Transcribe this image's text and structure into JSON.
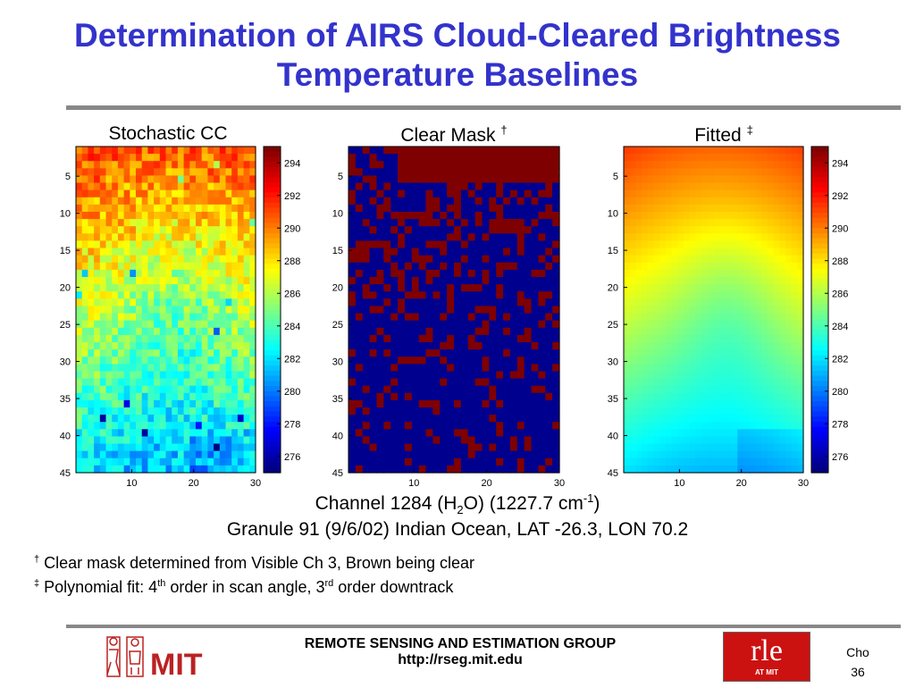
{
  "title_line1": "Determination of AIRS Cloud-Cleared Brightness",
  "title_line2": "Temperature Baselines",
  "panels": {
    "stochastic": "Stochastic CC",
    "clear_mask": "Clear Mask",
    "clear_mask_mark": "†",
    "fitted": "Fitted",
    "fitted_mark": "‡"
  },
  "caption": {
    "line1_a": "Channel 1284 (H",
    "line1_sub": "2",
    "line1_b": "O) (1227.7 cm",
    "line1_sup": "-1",
    "line1_c": ")",
    "line2": "Granule 91 (9/6/02) Indian Ocean, LAT -26.3, LON 70.2"
  },
  "notes": {
    "n1_mark": "†",
    "n1_text": " Clear mask determined from Visible Ch 3, Brown being clear",
    "n2_mark": "‡",
    "n2_a": " Polynomial fit: 4",
    "n2_sup1": "th",
    "n2_b": " order in scan angle, 3",
    "n2_sup2": "rd",
    "n2_c": " order downtrack"
  },
  "footer": {
    "group": "REMOTE SENSING AND ESTIMATION GROUP",
    "url": "http://rseg.mit.edu",
    "author": "Cho",
    "page": "36",
    "mit_logo": "MIT",
    "rle_logo": "rle",
    "rle_sub": "AT MIT"
  },
  "colors": {
    "title": "#3333cc",
    "clear": "#7f0000",
    "cloudy": "#00008f"
  },
  "chart_data": [
    {
      "type": "heatmap",
      "title": "Stochastic CC",
      "x_ticks": [
        10,
        20,
        30
      ],
      "y_ticks": [
        5,
        10,
        15,
        20,
        25,
        30,
        35,
        40,
        45
      ],
      "xlim": [
        1,
        30
      ],
      "ylim": [
        1,
        45
      ],
      "colorbar": {
        "ticks": [
          294,
          292,
          290,
          288,
          286,
          284,
          282,
          280,
          278,
          276
        ],
        "range": [
          275,
          295
        ],
        "colormap": "jet"
      }
    },
    {
      "type": "heatmap",
      "title": "Clear Mask †",
      "x_ticks": [
        10,
        20,
        30
      ],
      "y_ticks": [
        5,
        10,
        15,
        20,
        25,
        30,
        35,
        40,
        45
      ],
      "xlim": [
        1,
        30
      ],
      "ylim": [
        1,
        45
      ],
      "values": "binary: 1 = clear (brown), 0 = cloudy (blue)"
    },
    {
      "type": "heatmap",
      "title": "Fitted ‡",
      "x_ticks": [
        10,
        20,
        30
      ],
      "y_ticks": [
        5,
        10,
        15,
        20,
        25,
        30,
        35,
        40,
        45
      ],
      "xlim": [
        1,
        30
      ],
      "ylim": [
        1,
        45
      ],
      "colorbar": {
        "ticks": [
          294,
          292,
          290,
          288,
          286,
          284,
          282,
          280,
          278,
          276
        ],
        "range": [
          275,
          295
        ],
        "colormap": "jet"
      }
    }
  ]
}
